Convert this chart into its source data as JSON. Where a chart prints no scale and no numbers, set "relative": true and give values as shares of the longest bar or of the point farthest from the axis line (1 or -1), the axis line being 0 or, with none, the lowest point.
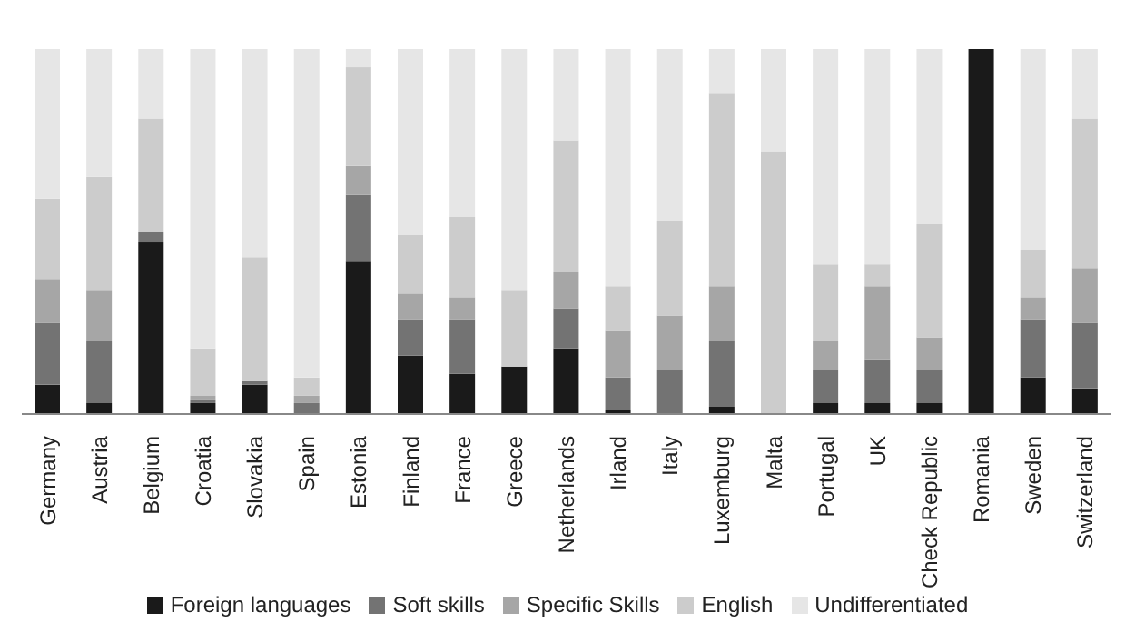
{
  "chart_data": {
    "type": "bar",
    "stacked": true,
    "relative": true,
    "legend": "bottom",
    "categories": [
      "Germany",
      "Austria",
      "Belgium",
      "Croatia",
      "Slovakia",
      "Spain",
      "Estonia",
      "Finland",
      "France",
      "Greece",
      "Netherlands",
      "Irland",
      "Italy",
      "Luxemburg",
      "Malta",
      "Portugal",
      "UK",
      "Check Republic",
      "Romania",
      "Sweden",
      "Switzerland"
    ],
    "series": [
      {
        "name": "Foreign languages",
        "color": "#1a1a1a",
        "values": [
          0.08,
          0.03,
          0.47,
          0.03,
          0.08,
          0,
          0.42,
          0.16,
          0.11,
          0.13,
          0.18,
          0.01,
          0,
          0.02,
          0,
          0.03,
          0.03,
          0.03,
          1,
          0.1,
          0.07
        ]
      },
      {
        "name": "Soft skills",
        "color": "#737373",
        "values": [
          0.17,
          0.17,
          0.03,
          0.01,
          0.01,
          0.03,
          0.18,
          0.1,
          0.15,
          0,
          0.11,
          0.09,
          0.12,
          0.18,
          0,
          0.09,
          0.12,
          0.09,
          0,
          0.16,
          0.18
        ]
      },
      {
        "name": "Specific Skills",
        "color": "#a6a6a6",
        "values": [
          0.12,
          0.14,
          0,
          0.01,
          0,
          0.02,
          0.08,
          0.07,
          0.06,
          0,
          0.1,
          0.13,
          0.15,
          0.15,
          0,
          0.08,
          0.2,
          0.09,
          0,
          0.06,
          0.15
        ]
      },
      {
        "name": "English",
        "color": "#cccccc",
        "values": [
          0.22,
          0.31,
          0.31,
          0.13,
          0.34,
          0.05,
          0.27,
          0.16,
          0.22,
          0.21,
          0.36,
          0.12,
          0.26,
          0.53,
          0.72,
          0.21,
          0.06,
          0.31,
          0,
          0.13,
          0.41
        ]
      },
      {
        "name": "Undifferentiated",
        "color": "#e6e6e6",
        "values": [
          0.41,
          0.35,
          0.19,
          0.82,
          0.57,
          0.9,
          0.05,
          0.51,
          0.46,
          0.66,
          0.25,
          0.65,
          0.47,
          0.12,
          0.28,
          0.59,
          0.59,
          0.48,
          0,
          0.55,
          0.19
        ]
      }
    ]
  }
}
